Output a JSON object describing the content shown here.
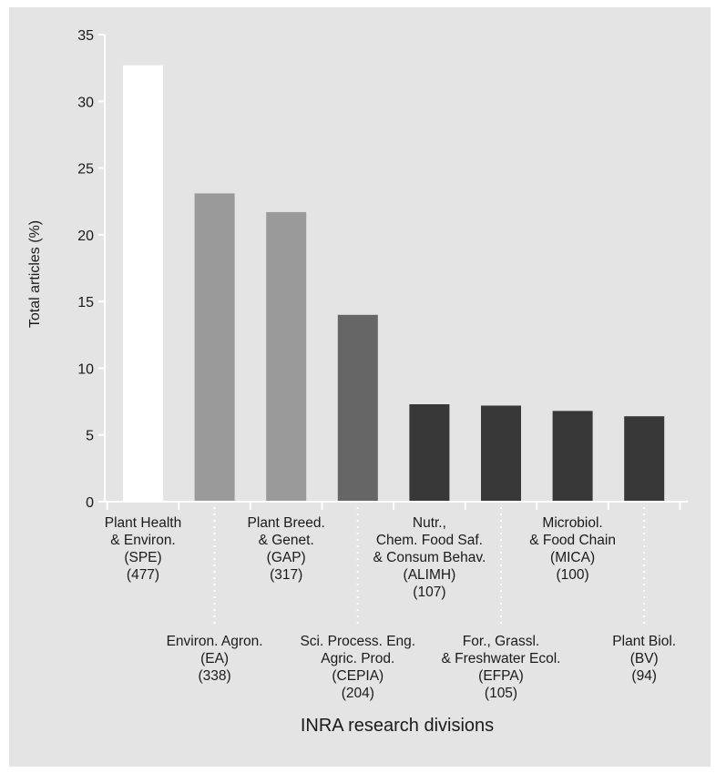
{
  "colors": {
    "background": "#e4e4e4",
    "axis": "#ffffff",
    "text": "#1a1a1a",
    "connector": "#ffffff"
  },
  "chart_data": {
    "type": "bar",
    "xlabel": "INRA research divisions",
    "ylabel": "Total articles (%)",
    "ylim": [
      0,
      35
    ],
    "yticks": [
      0,
      5,
      10,
      15,
      20,
      25,
      30,
      35
    ],
    "grid": false,
    "categories": [
      {
        "lines": [
          "Plant Health",
          "& Environ.",
          "(SPE)",
          "(477)"
        ],
        "row": "top"
      },
      {
        "lines": [
          "Environ. Agron.",
          "(EA)",
          "(338)"
        ],
        "row": "bottom"
      },
      {
        "lines": [
          "Plant Breed.",
          "& Genet.",
          "(GAP)",
          "(317)"
        ],
        "row": "top"
      },
      {
        "lines": [
          "Sci. Process. Eng.",
          "Agric. Prod.",
          "(CEPIA)",
          "(204)"
        ],
        "row": "bottom"
      },
      {
        "lines": [
          "Nutr.,",
          "Chem. Food Saf.",
          "& Consum Behav.",
          "(ALIMH)",
          "(107)"
        ],
        "row": "top"
      },
      {
        "lines": [
          "For., Grassl.",
          "& Freshwater Ecol.",
          "(EFPA)",
          "(105)"
        ],
        "row": "bottom"
      },
      {
        "lines": [
          "Microbiol.",
          "& Food Chain",
          "(MICA)",
          "(100)"
        ],
        "row": "top"
      },
      {
        "lines": [
          "Plant Biol.",
          "(BV)",
          "(94)"
        ],
        "row": "bottom"
      }
    ],
    "values": [
      32.7,
      23.1,
      21.7,
      14.0,
      7.3,
      7.2,
      6.8,
      6.4
    ],
    "bar_colors": [
      "#ffffff",
      "#9a9a9a",
      "#9a9a9a",
      "#666666",
      "#383838",
      "#383838",
      "#383838",
      "#383838"
    ]
  }
}
